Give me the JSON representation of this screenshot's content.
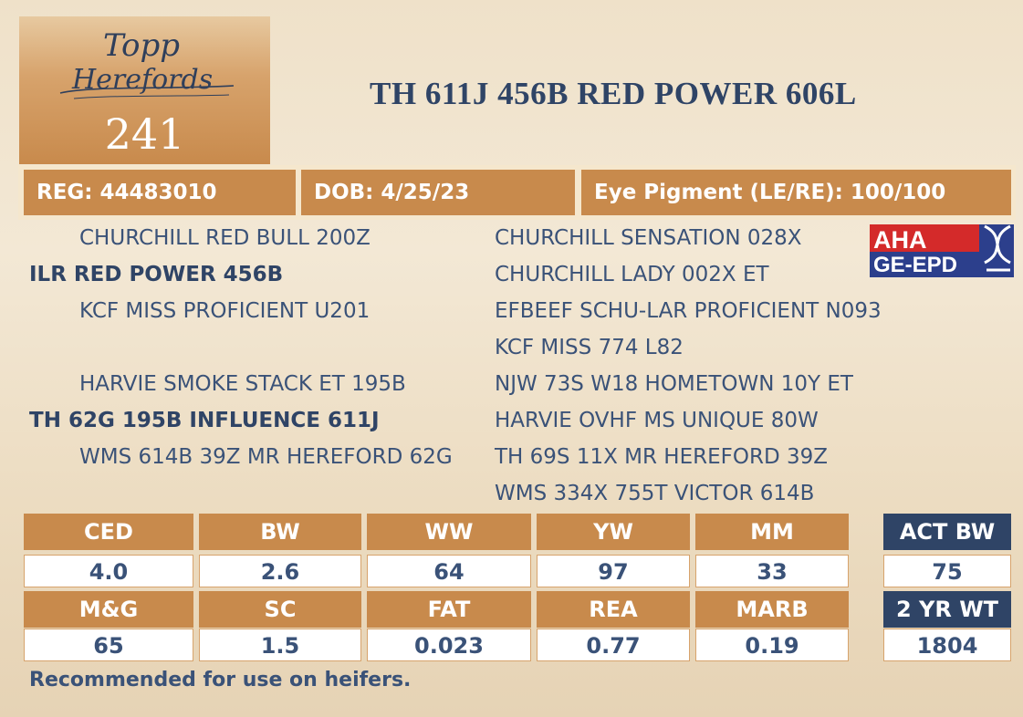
{
  "logo": {
    "line1": "Topp",
    "line2": "Herefords",
    "lot_number": "241"
  },
  "title": "TH 611J 456B RED POWER 606L",
  "info": {
    "reg": "REG: 44483010",
    "dob": "DOB: 4/25/23",
    "eye_pigment": "Eye Pigment (LE/RE): 100/100"
  },
  "pedigree": {
    "sire": "ILR RED POWER 456B",
    "sire_sire": "CHURCHILL RED BULL 200Z",
    "sire_dam": "KCF MISS PROFICIENT U201",
    "sire_sire_sire": "CHURCHILL SENSATION 028X",
    "sire_sire_dam": "CHURCHILL LADY 002X ET",
    "sire_dam_sire": "EFBEEF SCHU-LAR PROFICIENT N093",
    "sire_dam_dam": "KCF MISS 774 L82",
    "dam": "TH 62G 195B INFLUENCE 611J",
    "dam_sire": "HARVIE SMOKE STACK ET 195B",
    "dam_dam": "WMS 614B 39Z MR HEREFORD 62G",
    "dam_sire_sire": "NJW 73S W18 HOMETOWN 10Y ET",
    "dam_sire_dam": "HARVIE OVHF MS UNIQUE 80W",
    "dam_dam_sire": "TH 69S 11X MR HEREFORD 39Z",
    "dam_dam_dam": "WMS 334X 755T VICTOR 614B"
  },
  "badge": {
    "line1": "AHA",
    "line2": "GE-EPD"
  },
  "epd": {
    "row1": [
      {
        "label": "CED",
        "value": "4.0"
      },
      {
        "label": "BW",
        "value": "2.6"
      },
      {
        "label": "WW",
        "value": "64"
      },
      {
        "label": "YW",
        "value": "97"
      },
      {
        "label": "MM",
        "value": "33"
      }
    ],
    "row2": [
      {
        "label": "M&G",
        "value": "65"
      },
      {
        "label": "SC",
        "value": "1.5"
      },
      {
        "label": "FAT",
        "value": "0.023"
      },
      {
        "label": "REA",
        "value": "0.77"
      },
      {
        "label": "MARB",
        "value": "0.19"
      }
    ],
    "side": [
      {
        "label": "ACT BW",
        "value": "75"
      },
      {
        "label": "2 YR WT",
        "value": "1804"
      }
    ]
  },
  "note": "Recommended for use on heifers.",
  "colors": {
    "copper": "#c88a4c",
    "navy": "#2f4466",
    "text_blue": "#3a5278",
    "background": "#efe1c9"
  }
}
